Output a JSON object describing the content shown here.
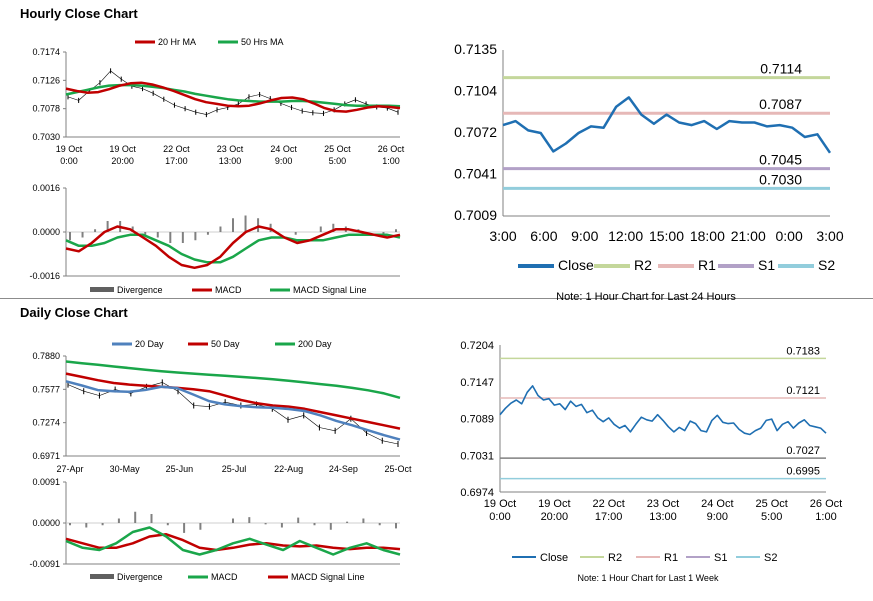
{
  "sections": {
    "hourly_title": "Hourly Close Chart",
    "daily_title": "Daily Close Chart"
  },
  "colors": {
    "red": "#c00000",
    "green": "#1aa64a",
    "blue": "#4f81bd",
    "close_blue": "#1f6fb2",
    "r2": "#c4d79b",
    "r1": "#e6b8b7",
    "s1": "#b2a1c7",
    "s2": "#92cddc",
    "divergence": "#808080",
    "grey_line": "#808080"
  },
  "chart_data": [
    {
      "id": "hourly_price",
      "type": "line",
      "legend": [
        "20 Hr MA",
        "50 Hrs MA"
      ],
      "legend_position": "top",
      "y_ticks": [
        "0.7174",
        "0.7126",
        "0.7078",
        "0.7030"
      ],
      "ylim": [
        0.703,
        0.7174
      ],
      "x_ticks": [
        [
          "19 Oct",
          "0:00"
        ],
        [
          "19 Oct",
          "20:00"
        ],
        [
          "22 Oct",
          "17:00"
        ],
        [
          "23 Oct",
          "13:00"
        ],
        [
          "24 Oct",
          "9:00"
        ],
        [
          "25 Oct",
          "5:00"
        ],
        [
          "26 Oct",
          "1:00"
        ]
      ],
      "series": [
        {
          "name": "20 Hr MA",
          "values": [
            0.7112,
            0.7108,
            0.7105,
            0.7106,
            0.7111,
            0.7117,
            0.7121,
            0.7122,
            0.7119,
            0.7114,
            0.7108,
            0.7101,
            0.7094,
            0.7089,
            0.7086,
            0.7083,
            0.7082,
            0.7083,
            0.7087,
            0.7092,
            0.7096,
            0.7097,
            0.7094,
            0.7087,
            0.7079,
            0.7074,
            0.7073,
            0.7076,
            0.708,
            0.7082,
            0.7081,
            0.7079
          ]
        },
        {
          "name": "50 Hrs MA",
          "values": [
            0.7102,
            0.7106,
            0.711,
            0.7114,
            0.7117,
            0.7118,
            0.7118,
            0.7117,
            0.7115,
            0.7113,
            0.711,
            0.7107,
            0.7103,
            0.71,
            0.7097,
            0.7094,
            0.7092,
            0.7091,
            0.709,
            0.709,
            0.709,
            0.7091,
            0.7091,
            0.709,
            0.7088,
            0.7086,
            0.7084,
            0.7083,
            0.7083,
            0.7083,
            0.7083,
            0.7082
          ]
        },
        {
          "name": "Close",
          "values": [
            0.7098,
            0.7092,
            0.7108,
            0.7122,
            0.7142,
            0.7128,
            0.7116,
            0.7112,
            0.7104,
            0.7094,
            0.7084,
            0.7078,
            0.7072,
            0.7068,
            0.7076,
            0.708,
            0.7086,
            0.7098,
            0.7102,
            0.7095,
            0.7087,
            0.708,
            0.7074,
            0.7071,
            0.707,
            0.7076,
            0.7086,
            0.7093,
            0.7086,
            0.7081,
            0.7079,
            0.7072
          ]
        }
      ]
    },
    {
      "id": "hourly_macd",
      "type": "line",
      "legend": [
        "Divergence",
        "MACD",
        "MACD Signal Line"
      ],
      "legend_position": "bottom",
      "y_ticks": [
        "0.0016",
        "0.0000",
        "-0.0016"
      ],
      "ylim": [
        -0.0016,
        0.0016
      ],
      "series": [
        {
          "name": "MACD",
          "values": [
            -0.0006,
            -0.0007,
            -0.0004,
            0.0,
            0.0002,
            0.0001,
            -0.0002,
            -0.0005,
            -0.0009,
            -0.0012,
            -0.0013,
            -0.0012,
            -0.0009,
            -0.0004,
            0.0,
            0.0002,
            0.0001,
            -0.0002,
            -0.0004,
            -0.0003,
            -0.0001,
            0.0001,
            0.0001,
            0.0,
            -0.0001,
            -0.0002,
            -0.0001
          ]
        },
        {
          "name": "MACD Signal Line",
          "values": [
            -0.0003,
            -0.0005,
            -0.0005,
            -0.0004,
            -0.0002,
            -0.0001,
            -0.0001,
            -0.0003,
            -0.0005,
            -0.0008,
            -0.001,
            -0.0011,
            -0.0011,
            -0.0009,
            -0.0006,
            -0.0003,
            -0.0002,
            -0.0002,
            -0.0003,
            -0.0003,
            -0.0003,
            -0.0002,
            -0.0001,
            -0.0001,
            -0.0001,
            -0.0001,
            -0.0002
          ]
        },
        {
          "name": "Divergence",
          "values": [
            -0.0003,
            -0.0002,
            0.0001,
            0.0004,
            0.0004,
            0.0002,
            -0.0001,
            -0.0002,
            -0.0004,
            -0.0004,
            -0.0003,
            -0.0001,
            0.0002,
            0.0005,
            0.0006,
            0.0005,
            0.0003,
            0.0,
            -0.0001,
            0.0,
            0.0002,
            0.0003,
            0.0002,
            0.0001,
            0.0,
            -0.0001,
            0.0001
          ]
        }
      ]
    },
    {
      "id": "hourly_close_levels",
      "type": "line",
      "note": "Note: 1 Hour Chart for Last 24 Hours",
      "y_ticks": [
        "0.7135",
        "0.7104",
        "0.7072",
        "0.7041",
        "0.7009"
      ],
      "ylim": [
        0.7009,
        0.7135
      ],
      "x_ticks": [
        "3:00",
        "6:00",
        "9:00",
        "12:00",
        "15:00",
        "18:00",
        "21:00",
        "0:00",
        "3:00"
      ],
      "levels": [
        {
          "name": "R2",
          "value": 0.7114,
          "label": "0.7114"
        },
        {
          "name": "R1",
          "value": 0.7087,
          "label": "0.7087"
        },
        {
          "name": "S1",
          "value": 0.7045,
          "label": "0.7045"
        },
        {
          "name": "S2",
          "value": 0.703,
          "label": "0.7030"
        }
      ],
      "legend": [
        "Close",
        "R2",
        "R1",
        "S1",
        "S2"
      ],
      "series": [
        {
          "name": "Close",
          "values": [
            0.7078,
            0.7081,
            0.7074,
            0.7072,
            0.7058,
            0.7064,
            0.7072,
            0.7077,
            0.7076,
            0.7092,
            0.7099,
            0.7086,
            0.7079,
            0.7086,
            0.708,
            0.7078,
            0.7081,
            0.7075,
            0.7081,
            0.708,
            0.708,
            0.7077,
            0.7078,
            0.7076,
            0.7069,
            0.7071,
            0.7057
          ]
        }
      ]
    },
    {
      "id": "daily_price",
      "type": "line",
      "legend": [
        "20 Day",
        "50 Day",
        "200 Day"
      ],
      "legend_position": "top",
      "y_ticks": [
        "0.7880",
        "0.7577",
        "0.7274",
        "0.6971"
      ],
      "ylim": [
        0.6971,
        0.788
      ],
      "x_ticks": [
        "27-Apr",
        "30-May",
        "25-Jun",
        "25-Jul",
        "22-Aug",
        "24-Sep",
        "25-Oct"
      ],
      "series": [
        {
          "name": "20 Day",
          "values": [
            0.765,
            0.7612,
            0.757,
            0.756,
            0.7555,
            0.7572,
            0.76,
            0.7588,
            0.753,
            0.747,
            0.744,
            0.7425,
            0.7415,
            0.741,
            0.7398,
            0.738,
            0.734,
            0.729,
            0.725,
            0.7205,
            0.716,
            0.712
          ]
        },
        {
          "name": "50 Day",
          "values": [
            0.772,
            0.769,
            0.766,
            0.7635,
            0.762,
            0.761,
            0.76,
            0.759,
            0.7578,
            0.756,
            0.752,
            0.748,
            0.745,
            0.743,
            0.742,
            0.74,
            0.737,
            0.734,
            0.731,
            0.728,
            0.725,
            0.722
          ]
        },
        {
          "name": "200 Day",
          "values": [
            0.783,
            0.7815,
            0.78,
            0.7785,
            0.777,
            0.7755,
            0.7742,
            0.773,
            0.772,
            0.771,
            0.77,
            0.769,
            0.768,
            0.7668,
            0.7655,
            0.764,
            0.7625,
            0.761,
            0.759,
            0.7568,
            0.754,
            0.75
          ]
        },
        {
          "name": "Close",
          "values": [
            0.762,
            0.756,
            0.752,
            0.7575,
            0.754,
            0.76,
            0.764,
            0.756,
            0.743,
            0.742,
            0.746,
            0.743,
            0.744,
            0.74,
            0.73,
            0.734,
            0.723,
            0.72,
            0.731,
            0.718,
            0.711,
            0.708
          ]
        }
      ]
    },
    {
      "id": "daily_macd",
      "type": "line",
      "legend": [
        "Divergence",
        "MACD",
        "MACD Signal Line"
      ],
      "legend_position": "bottom",
      "y_ticks": [
        "0.0091",
        "0.0000",
        "-0.0091"
      ],
      "ylim": [
        -0.0091,
        0.0091
      ],
      "series": [
        {
          "name": "MACD",
          "values": [
            -0.004,
            -0.0055,
            -0.006,
            -0.0045,
            -0.002,
            -0.001,
            -0.003,
            -0.006,
            -0.007,
            -0.006,
            -0.0045,
            -0.0035,
            -0.0048,
            -0.006,
            -0.004,
            -0.0055,
            -0.007,
            -0.0055,
            -0.0045,
            -0.006,
            -0.007
          ]
        },
        {
          "name": "MACD Signal Line",
          "values": [
            -0.0035,
            -0.0045,
            -0.0055,
            -0.0055,
            -0.0045,
            -0.003,
            -0.0025,
            -0.0038,
            -0.0055,
            -0.006,
            -0.0055,
            -0.0048,
            -0.0045,
            -0.005,
            -0.0052,
            -0.005,
            -0.0055,
            -0.0058,
            -0.0055,
            -0.0055,
            -0.0058
          ]
        },
        {
          "name": "Divergence",
          "values": [
            -0.0005,
            -0.001,
            -0.0005,
            0.001,
            0.0025,
            0.002,
            -0.0005,
            -0.0022,
            -0.0015,
            0.0,
            0.001,
            0.0013,
            -0.0003,
            -0.001,
            0.0012,
            -0.0005,
            -0.0015,
            0.0003,
            0.001,
            -0.0005,
            -0.0012
          ]
        }
      ]
    },
    {
      "id": "daily_close_levels",
      "type": "line",
      "note": "Note: 1 Hour Chart for Last 1 Week",
      "y_ticks": [
        "0.7204",
        "0.7147",
        "0.7089",
        "0.7031",
        "0.6974"
      ],
      "ylim": [
        0.6974,
        0.7204
      ],
      "x_ticks": [
        [
          "19 Oct",
          "0:00"
        ],
        [
          "19 Oct",
          "20:00"
        ],
        [
          "22 Oct",
          "17:00"
        ],
        [
          "23 Oct",
          "13:00"
        ],
        [
          "24 Oct",
          "9:00"
        ],
        [
          "25 Oct",
          "5:00"
        ],
        [
          "26 Oct",
          "1:00"
        ]
      ],
      "levels": [
        {
          "name": "R2",
          "value": 0.7183,
          "label": "0.7183"
        },
        {
          "name": "R1",
          "value": 0.7121,
          "label": "0.7121"
        },
        {
          "name": "S1",
          "value": 0.7027,
          "label": "0.7027"
        },
        {
          "name": "S2",
          "value": 0.6995,
          "label": "0.6995"
        }
      ],
      "legend": [
        "Close",
        "R2",
        "R1",
        "S1",
        "S2"
      ],
      "series": [
        {
          "name": "Close",
          "values": [
            0.7095,
            0.7105,
            0.7113,
            0.7118,
            0.7112,
            0.713,
            0.714,
            0.7125,
            0.7118,
            0.712,
            0.711,
            0.7112,
            0.7103,
            0.7116,
            0.7108,
            0.7111,
            0.7098,
            0.7102,
            0.709,
            0.7084,
            0.709,
            0.708,
            0.7074,
            0.7078,
            0.7068,
            0.708,
            0.7091,
            0.7087,
            0.7085,
            0.7095,
            0.7086,
            0.7076,
            0.7068,
            0.7075,
            0.707,
            0.7085,
            0.7081,
            0.707,
            0.7068,
            0.7086,
            0.7094,
            0.7083,
            0.7081,
            0.7082,
            0.7072,
            0.7066,
            0.7064,
            0.707,
            0.7074,
            0.7086,
            0.7088,
            0.707,
            0.708,
            0.7084,
            0.7074,
            0.7082,
            0.7087,
            0.7078,
            0.7076,
            0.7074,
            0.7066
          ]
        }
      ]
    }
  ]
}
